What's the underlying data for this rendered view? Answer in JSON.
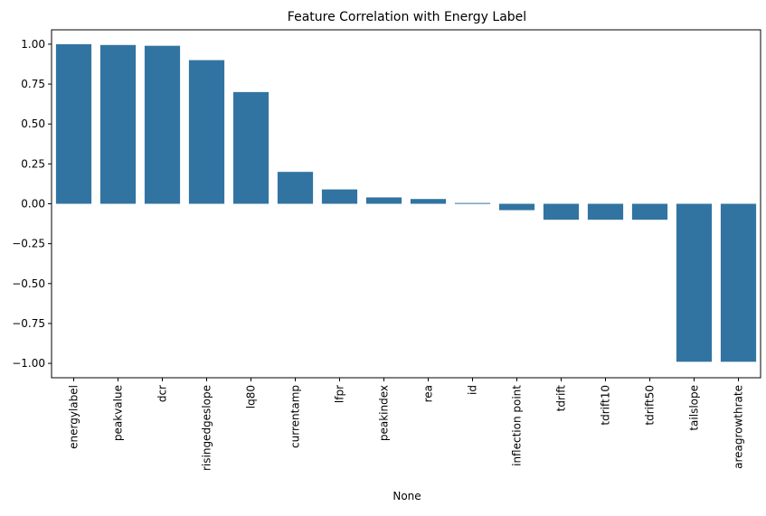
{
  "chart_data": {
    "type": "bar",
    "title": "Feature Correlation with Energy Label",
    "xlabel": "None",
    "ylabel": "",
    "categories": [
      "energylabel",
      "peakvalue",
      "dcr",
      "risingedgeslope",
      "lq80",
      "currentamp",
      "lfpr",
      "peakindex",
      "rea",
      "id",
      "inflection point",
      "tdrift",
      "tdrift10",
      "tdrift50",
      "tailslope",
      "areagrowthrate"
    ],
    "values": [
      1.0,
      0.995,
      0.99,
      0.9,
      0.7,
      0.2,
      0.09,
      0.04,
      0.03,
      0.005,
      -0.04,
      -0.1,
      -0.1,
      -0.1,
      -0.99,
      -0.99
    ],
    "ylim": [
      -1.09,
      1.09
    ],
    "yticks": [
      1.0,
      0.75,
      0.5,
      0.25,
      0.0,
      -0.25,
      -0.5,
      -0.75,
      -1.0
    ],
    "ytick_labels": [
      "1.00",
      "0.75",
      "0.50",
      "0.25",
      "0.00",
      "−0.25",
      "−0.50",
      "−0.75",
      "−1.00"
    ],
    "bar_color": "#3274a1",
    "grid": false,
    "legend": "none"
  }
}
